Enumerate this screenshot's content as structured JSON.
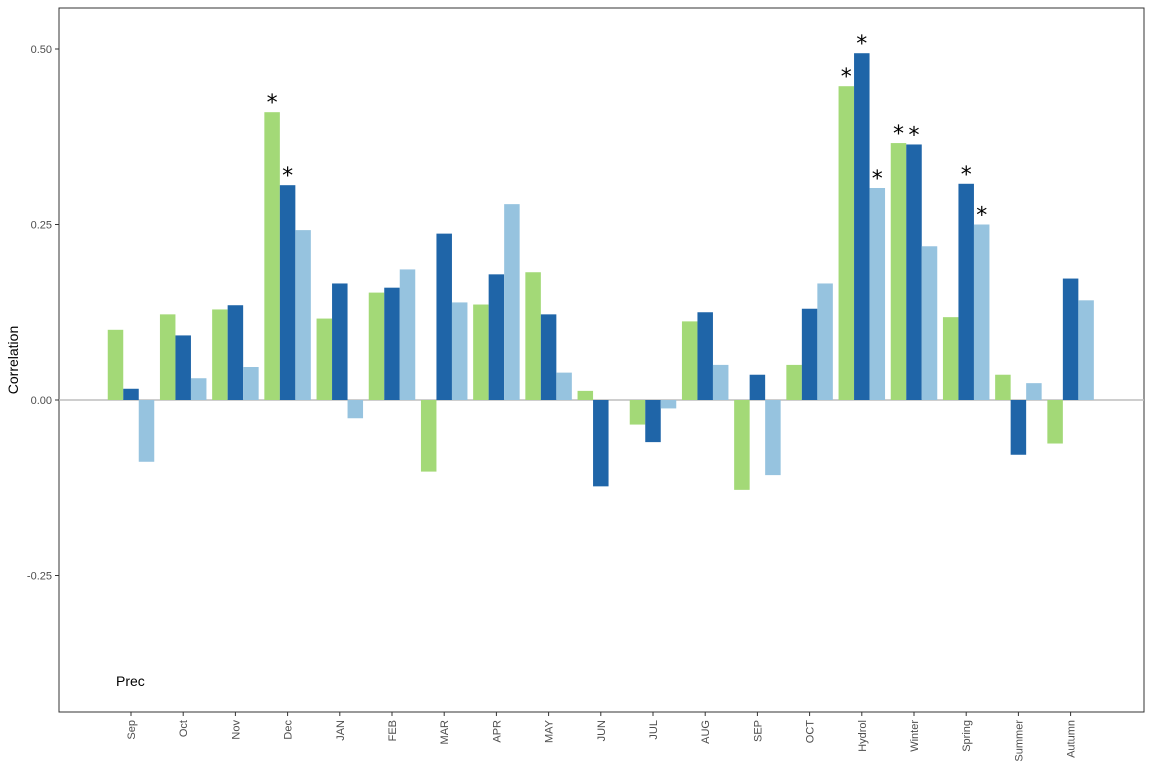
{
  "chart_data": {
    "type": "bar",
    "ylabel": "Correlation",
    "panel_label": "Prec",
    "ylim": [
      -0.44,
      0.56
    ],
    "yticks": [
      -0.25,
      0.0,
      0.25,
      0.5
    ],
    "ytick_labels": [
      "-0.25",
      "0.00",
      "0.25",
      "0.50"
    ],
    "zero_line": true,
    "grid": false,
    "categories": [
      "Sep",
      "Oct",
      "Nov",
      "Dec",
      "JAN",
      "FEB",
      "MAR",
      "APR",
      "MAY",
      "JUN",
      "JUL",
      "AUG",
      "SEP",
      "OCT",
      "Hydrol",
      "Winter",
      "Spring",
      "Summer",
      "Autumn"
    ],
    "significance_marker": "*",
    "series": [
      {
        "color": "#a3d977",
        "values": [
          0.1,
          0.122,
          0.129,
          0.41,
          0.116,
          0.153,
          -0.102,
          0.136,
          0.182,
          0.013,
          -0.035,
          0.112,
          -0.128,
          0.05,
          0.447,
          0.366,
          0.118,
          0.036,
          -0.062
        ],
        "significant": [
          false,
          false,
          false,
          true,
          false,
          false,
          false,
          false,
          false,
          false,
          false,
          false,
          false,
          false,
          true,
          true,
          false,
          false,
          false
        ]
      },
      {
        "color": "#1f65a8",
        "values": [
          0.016,
          0.092,
          0.135,
          0.306,
          0.166,
          0.16,
          0.237,
          0.179,
          0.122,
          -0.123,
          -0.06,
          0.125,
          0.036,
          0.13,
          0.494,
          0.364,
          0.308,
          -0.078,
          0.173
        ],
        "significant": [
          false,
          false,
          false,
          true,
          false,
          false,
          false,
          false,
          false,
          false,
          false,
          false,
          false,
          false,
          true,
          true,
          true,
          false,
          false
        ]
      },
      {
        "color": "#96c3df",
        "values": [
          -0.088,
          0.031,
          0.047,
          0.242,
          -0.026,
          0.186,
          0.139,
          0.279,
          0.039,
          0.0,
          -0.012,
          0.05,
          -0.107,
          0.166,
          0.302,
          0.219,
          0.25,
          0.024,
          0.142
        ],
        "significant": [
          false,
          false,
          false,
          false,
          false,
          false,
          false,
          false,
          false,
          false,
          false,
          false,
          false,
          false,
          true,
          false,
          true,
          false,
          false
        ]
      }
    ]
  }
}
